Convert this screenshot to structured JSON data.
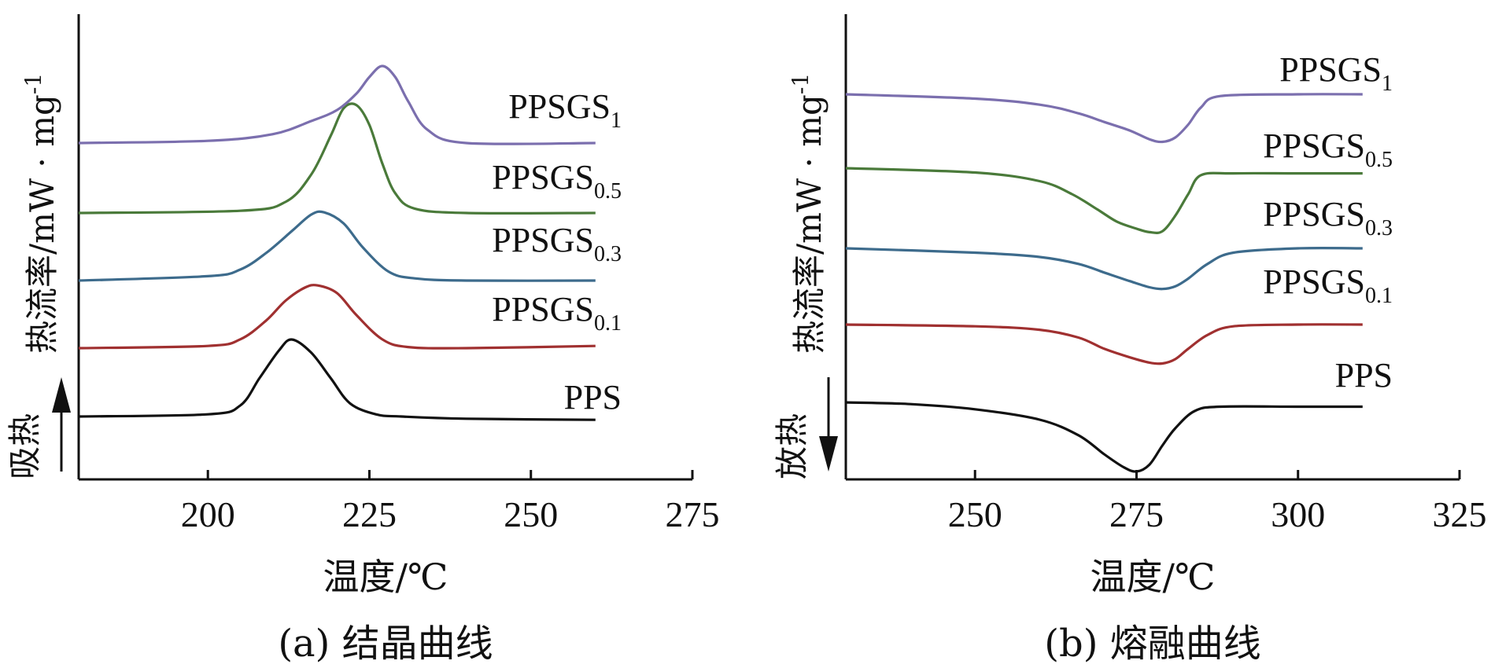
{
  "chart_data": [
    {
      "type": "line",
      "caption": "(a) 结晶曲线",
      "xlabel": "温度/℃",
      "ylabel": "热流率/mW · mg",
      "ylabel_sup": "-1",
      "direction_label": "吸热",
      "direction": "up",
      "xlim": [
        180,
        275
      ],
      "xticks": [
        200,
        225,
        250,
        275
      ],
      "grid": false,
      "series": [
        {
          "name": "PPS",
          "name_main": "PPS",
          "name_sub": "",
          "color": "#111111",
          "x": [
            180,
            200,
            205,
            208,
            211,
            213,
            216,
            219,
            222,
            226,
            230,
            240,
            260
          ],
          "y": [
            0.0,
            0.02,
            0.1,
            0.35,
            0.6,
            0.7,
            0.58,
            0.35,
            0.12,
            0.02,
            0.0,
            -0.02,
            -0.03
          ]
        },
        {
          "name": "PPSGS0.1",
          "name_main": "PPSGS",
          "name_sub": "0.1",
          "color": "#a03030",
          "x": [
            180,
            200,
            205,
            209,
            212,
            215,
            217,
            220,
            223,
            227,
            231,
            240,
            260
          ],
          "y": [
            0.0,
            0.02,
            0.08,
            0.25,
            0.43,
            0.55,
            0.57,
            0.5,
            0.3,
            0.08,
            0.01,
            0.0,
            0.02
          ]
        },
        {
          "name": "PPSGS0.3",
          "name_main": "PPSGS",
          "name_sub": "0.3",
          "color": "#3d6b8c",
          "x": [
            180,
            200,
            205,
            209,
            213,
            216,
            218,
            221,
            224,
            228,
            232,
            240,
            260
          ],
          "y": [
            0.0,
            0.04,
            0.1,
            0.25,
            0.45,
            0.6,
            0.62,
            0.52,
            0.3,
            0.08,
            0.02,
            0.0,
            0.0
          ]
        },
        {
          "name": "PPSGS0.5",
          "name_main": "PPSGS",
          "name_sub": "0.5",
          "color": "#4a7a3a",
          "x": [
            180,
            205,
            212,
            216,
            219,
            221,
            223,
            225,
            227,
            229,
            232,
            240,
            260
          ],
          "y": [
            0.0,
            0.02,
            0.1,
            0.35,
            0.7,
            0.95,
            0.98,
            0.8,
            0.45,
            0.18,
            0.04,
            0.0,
            0.0
          ]
        },
        {
          "name": "PPSGS1",
          "name_main": "PPSGS",
          "name_sub": "1",
          "color": "#7b6fae",
          "x": [
            180,
            200,
            210,
            216,
            220,
            223,
            225,
            227,
            229,
            231,
            234,
            240,
            260
          ],
          "y": [
            0.0,
            0.02,
            0.08,
            0.2,
            0.3,
            0.45,
            0.6,
            0.7,
            0.6,
            0.38,
            0.12,
            0.0,
            0.0
          ]
        }
      ]
    },
    {
      "type": "line",
      "caption": "(b) 熔融曲线",
      "xlabel": "温度/℃",
      "ylabel": "热流率/mW · mg",
      "ylabel_sup": "-1",
      "direction_label": "放热",
      "direction": "down",
      "xlim": [
        230,
        325
      ],
      "xticks": [
        250,
        275,
        300,
        325
      ],
      "grid": false,
      "series": [
        {
          "name": "PPS",
          "name_main": "PPS",
          "name_sub": "",
          "color": "#111111",
          "x": [
            230,
            240,
            250,
            260,
            266,
            270,
            273,
            275,
            277,
            279,
            281,
            284,
            288,
            300,
            310
          ],
          "y": [
            0.0,
            -0.02,
            -0.08,
            -0.2,
            -0.38,
            -0.6,
            -0.75,
            -0.8,
            -0.72,
            -0.5,
            -0.3,
            -0.1,
            -0.05,
            -0.05,
            -0.05
          ]
        },
        {
          "name": "PPSGS0.1",
          "name_main": "PPSGS",
          "name_sub": "0.1",
          "color": "#a03030",
          "x": [
            230,
            250,
            260,
            266,
            270,
            274,
            277,
            279,
            281,
            283,
            286,
            290,
            300,
            310
          ],
          "y": [
            0.0,
            -0.02,
            -0.06,
            -0.15,
            -0.28,
            -0.38,
            -0.44,
            -0.45,
            -0.4,
            -0.28,
            -0.12,
            -0.02,
            0.0,
            0.0
          ]
        },
        {
          "name": "PPSGS0.3",
          "name_main": "PPSGS",
          "name_sub": "0.3",
          "color": "#3d6b8c",
          "x": [
            230,
            250,
            260,
            266,
            270,
            274,
            277,
            279,
            281,
            283,
            286,
            290,
            300,
            310
          ],
          "y": [
            0.0,
            -0.05,
            -0.1,
            -0.18,
            -0.28,
            -0.38,
            -0.45,
            -0.47,
            -0.44,
            -0.35,
            -0.18,
            -0.05,
            0.0,
            0.0
          ]
        },
        {
          "name": "PPSGS0.5",
          "name_main": "PPSGS",
          "name_sub": "0.5",
          "color": "#4a7a3a",
          "x": [
            230,
            250,
            260,
            265,
            269,
            272,
            275,
            277,
            279,
            281,
            283,
            285,
            290,
            300,
            310
          ],
          "y": [
            0.0,
            -0.05,
            -0.15,
            -0.3,
            -0.48,
            -0.62,
            -0.7,
            -0.74,
            -0.73,
            -0.55,
            -0.3,
            -0.08,
            -0.06,
            -0.06,
            -0.06
          ]
        },
        {
          "name": "PPSGS1",
          "name_main": "PPSGS",
          "name_sub": "1",
          "color": "#7b6fae",
          "x": [
            230,
            250,
            260,
            266,
            270,
            274,
            277,
            279,
            281,
            283,
            285,
            288,
            300,
            310
          ],
          "y": [
            0.0,
            -0.05,
            -0.12,
            -0.22,
            -0.32,
            -0.42,
            -0.52,
            -0.55,
            -0.5,
            -0.35,
            -0.15,
            -0.02,
            0.0,
            0.0
          ]
        }
      ]
    }
  ]
}
